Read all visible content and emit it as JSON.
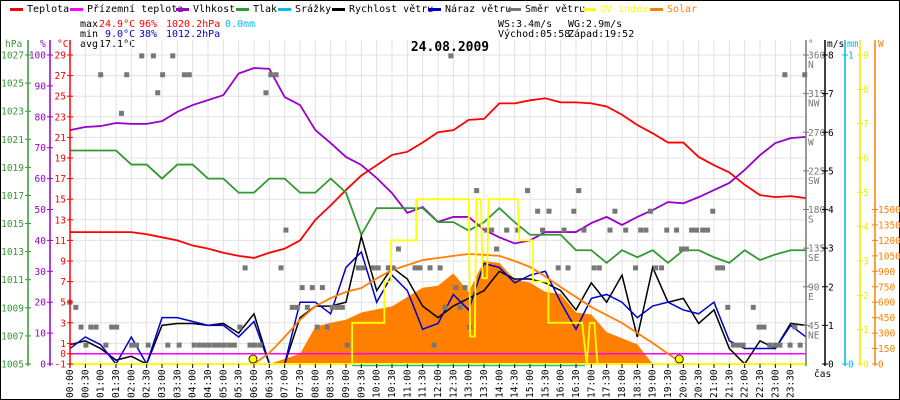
{
  "legend": [
    {
      "label": "Teplota",
      "color": "#ff0000"
    },
    {
      "label": "Přízemní teplota",
      "color": "#ff00ff"
    },
    {
      "label": "Vlhkost",
      "color": "#9900cc"
    },
    {
      "label": "Tlak",
      "color": "#339933"
    },
    {
      "label": "Srážky",
      "color": "#00bbee"
    },
    {
      "label": "Rychlost větru",
      "color": "#000000"
    },
    {
      "label": "Náraz větru",
      "color": "#0000cc"
    },
    {
      "label": "Směr větru",
      "color": "#777777"
    },
    {
      "label": "UV index",
      "color": "#ffff00"
    },
    {
      "label": "Solar",
      "color": "#ff8000"
    }
  ],
  "stats": {
    "max_label": "max",
    "max_temp": "24.9°C",
    "max_hum": "96%",
    "max_press": "1020.2hPa",
    "max_rain": "0.0mm",
    "min_label": "min",
    "min_temp": "9.0°C",
    "min_hum": "38%",
    "min_press": "1012.2hPa",
    "avg_label": "avg",
    "avg_temp": "17.1°C",
    "ws": "WS:3.4m/s",
    "wg": "WG:2.9m/s",
    "sunrise": "Východ:05:58",
    "sunset": "Západ:19:52"
  },
  "chart_data": {
    "type": "line",
    "title": "24.08.2009",
    "xlabel": "čas",
    "x_range_h": [
      0,
      24
    ],
    "x_tick_labels": [
      "00:00",
      "00:30",
      "01:00",
      "01:30",
      "02:00",
      "02:30",
      "03:00",
      "03:30",
      "04:00",
      "04:30",
      "05:00",
      "05:30",
      "06:00",
      "06:30",
      "07:00",
      "07:30",
      "08:00",
      "08:30",
      "09:00",
      "09:30",
      "10:00",
      "10:30",
      "11:00",
      "11:30",
      "12:00",
      "12:30",
      "13:00",
      "13:30",
      "14:00",
      "14:30",
      "15:00",
      "15:30",
      "16:00",
      "16:30",
      "17:00",
      "17:30",
      "18:00",
      "18:30",
      "19:00",
      "19:30",
      "20:00",
      "20:30",
      "21:00",
      "21:30",
      "22:00",
      "22:30",
      "23:00",
      "23:30"
    ],
    "axes": {
      "hpa": {
        "unit": "hPa",
        "range": [
          1005,
          1027
        ],
        "ticks": [
          "1027",
          "1025",
          "1023",
          "1021",
          "1019",
          "1017",
          "1015",
          "1013",
          "1011",
          "1009",
          "1007",
          "1005"
        ],
        "color": "#339933"
      },
      "pct": {
        "unit": "%",
        "range": [
          0,
          100
        ],
        "ticks": [
          "100",
          "90",
          "80",
          "70",
          "60",
          "50",
          "40",
          "30",
          "20",
          "10",
          "0"
        ],
        "color": "#9900cc"
      },
      "temp": {
        "unit": "°C",
        "range": [
          -1,
          29
        ],
        "ticks": [
          "29",
          "27",
          "25",
          "23",
          "21",
          "19",
          "17",
          "15",
          "13",
          "11",
          "9",
          "7",
          "5",
          "3",
          "1",
          "0",
          "-1"
        ],
        "color": "#ff0000"
      },
      "deg": {
        "unit": "°",
        "range": [
          0,
          360
        ],
        "ticks": [
          {
            "v": "360",
            "dir": "N"
          },
          {
            "v": "315",
            "dir": "NW"
          },
          {
            "v": "270",
            "dir": "W"
          },
          {
            "v": "225",
            "dir": "SW"
          },
          {
            "v": "180",
            "dir": "S"
          },
          {
            "v": "135",
            "dir": "SE"
          },
          {
            "v": "90",
            "dir": "E"
          },
          {
            "v": "45",
            "dir": "NE"
          }
        ],
        "color": "#777777"
      },
      "ms": {
        "unit": "m/s",
        "range": [
          0,
          8
        ],
        "ticks": [
          "8",
          "7",
          "6",
          "5",
          "4",
          "3",
          "2",
          "1",
          "0"
        ],
        "color": "#000000"
      },
      "mm": {
        "unit": "mm",
        "range": [
          0,
          1
        ],
        "ticks": [
          "1",
          "0"
        ],
        "color": "#00bbee"
      },
      "uv": {
        "unit": "",
        "range": [
          0,
          9
        ],
        "ticks": [
          "9",
          "8",
          "7",
          "6",
          "5",
          "4",
          "3",
          "2",
          "1",
          "0"
        ],
        "color": "#eeee00"
      },
      "w": {
        "unit": "W",
        "range": [
          0,
          3000
        ],
        "ticks": [
          "1500",
          "1350",
          "1200",
          "1050",
          "900",
          "750",
          "600",
          "450",
          "300",
          "150",
          "0"
        ],
        "color": "#ff8000"
      }
    },
    "step_h": 0.5,
    "series": [
      {
        "name": "Teplota",
        "axis": "temp",
        "color": "#ff0000",
        "values": [
          11.8,
          11.8,
          11.8,
          11.8,
          11.8,
          11.6,
          11.3,
          11.0,
          10.5,
          10.2,
          9.8,
          9.5,
          9.3,
          9.8,
          10.2,
          11.0,
          13.0,
          14.4,
          15.9,
          17.3,
          18.3,
          19.3,
          19.6,
          20.5,
          21.5,
          21.7,
          22.7,
          22.8,
          24.3,
          24.3,
          24.6,
          24.8,
          24.4,
          24.4,
          24.3,
          24.0,
          23.2,
          22.2,
          21.4,
          20.5,
          20.5,
          19.1,
          18.3,
          17.6,
          16.4,
          15.4,
          15.2,
          15.3,
          15.1
        ]
      },
      {
        "name": "Přízemní teplota",
        "axis": "temp",
        "color": "#ff00ff",
        "constant": 0
      },
      {
        "name": "Vlhkost",
        "axis": "pct",
        "color": "#9900cc",
        "values": [
          75.7,
          76.7,
          77,
          78,
          77.7,
          77.7,
          78.6,
          81.6,
          83.8,
          85.4,
          87,
          94,
          95.8,
          95.5,
          86.4,
          83.8,
          75.7,
          71.5,
          67,
          64.4,
          60.2,
          55.3,
          48.9,
          50.8,
          46,
          47.6,
          47.6,
          43.4,
          41,
          39,
          40,
          42.7,
          42.7,
          42.7,
          45.6,
          47.6,
          45,
          47.6,
          49.8,
          52.4,
          52,
          54,
          56.3,
          58.6,
          62.8,
          67.6,
          71.5,
          73.1,
          73.5
        ]
      },
      {
        "name": "Tlak",
        "axis": "hpa",
        "color": "#339933",
        "values": [
          1020.2,
          1020.2,
          1020.2,
          1020.2,
          1019.2,
          1019.2,
          1018.2,
          1019.2,
          1019.2,
          1018.2,
          1018.2,
          1017.2,
          1017.2,
          1018.2,
          1018.2,
          1017.2,
          1017.2,
          1018.2,
          1017.2,
          1014.2,
          1016.1,
          1016.1,
          1016.1,
          1016.1,
          1015.1,
          1015.1,
          1014.5,
          1015.1,
          1016.1,
          1015.1,
          1014.2,
          1014.2,
          1014.2,
          1013.1,
          1013.1,
          1012.2,
          1013.1,
          1012.6,
          1013.1,
          1012.2,
          1013.1,
          1013.1,
          1012.6,
          1012.2,
          1013.1,
          1012.4,
          1012.8,
          1013.1,
          1013.1
        ]
      },
      {
        "name": "Rychlost větru",
        "axis": "ms",
        "color": "#000000",
        "values": [
          0.5,
          0.6,
          0.4,
          0.1,
          0.2,
          0,
          1.0,
          1.05,
          1.05,
          1.0,
          1.05,
          0.8,
          1.3,
          0,
          0,
          1.2,
          1.5,
          1.5,
          1.6,
          3.3,
          1.9,
          2.5,
          2.2,
          1.5,
          1.2,
          1.5,
          1.7,
          1.9,
          2.4,
          2.2,
          2.2,
          2.1,
          1.9,
          1.4,
          2.1,
          1.6,
          2.3,
          0.7,
          2.5,
          1.6,
          1.7,
          1.05,
          1.4,
          0.4,
          0,
          0.6,
          0.4,
          1.05,
          1.0
        ]
      },
      {
        "name": "Náraz větru",
        "axis": "ms",
        "color": "#0000cc",
        "values": [
          0.4,
          0.7,
          0.5,
          0,
          0.7,
          0,
          1.2,
          1.2,
          1.1,
          1.0,
          1.0,
          0.7,
          1.1,
          0,
          0,
          1.6,
          1.6,
          1.3,
          2.5,
          2.9,
          1.6,
          2.3,
          1.9,
          0.9,
          1.05,
          1.8,
          1.4,
          2.6,
          2.5,
          2.1,
          2.3,
          2.4,
          1.6,
          0.9,
          1.7,
          1.8,
          1.6,
          1.2,
          1.5,
          1.6,
          1.4,
          1.3,
          1.6,
          0.6,
          0.4,
          0.4,
          0.4,
          1.0,
          0.7
        ]
      },
      {
        "name": "Solar",
        "axis": "w",
        "color": "#ff8000",
        "fill": true,
        "values": [
          0,
          0,
          0,
          0,
          0,
          0,
          0,
          0,
          0,
          0,
          0,
          0,
          0,
          0,
          50,
          100,
          360,
          400,
          430,
          500,
          530,
          560,
          650,
          740,
          760,
          880,
          700,
          1000,
          980,
          820,
          790,
          700,
          680,
          500,
          480,
          310,
          250,
          190,
          0,
          0,
          0,
          0,
          0,
          0,
          0,
          0,
          0,
          0,
          0
        ]
      },
      {
        "name": "Solar max",
        "axis": "w",
        "color": "#ff8000",
        "values": [
          0,
          0,
          0,
          0,
          0,
          0,
          0,
          0,
          0,
          0,
          0,
          0,
          0,
          107,
          262,
          430,
          560,
          640,
          700,
          738,
          830,
          913,
          960,
          1010,
          1029,
          1050,
          1068,
          1060,
          1050,
          1000,
          942,
          850,
          748,
          650,
          553,
          475,
          398,
          300,
          204,
          100,
          0,
          0,
          0,
          0,
          0,
          0,
          0,
          0,
          0
        ]
      }
    ],
    "uv_steps": [
      [
        0,
        0
      ],
      [
        9.2,
        0
      ],
      [
        9.2,
        1.2
      ],
      [
        10.25,
        1.2
      ],
      [
        10.25,
        2.4
      ],
      [
        10.47,
        2.4
      ],
      [
        10.47,
        3.6
      ],
      [
        11.29,
        3.6
      ],
      [
        11.29,
        4.8
      ],
      [
        13.0,
        4.8
      ],
      [
        13.05,
        0.8
      ],
      [
        13.2,
        0.8
      ],
      [
        13.25,
        4.8
      ],
      [
        13.4,
        4.8
      ],
      [
        13.45,
        2.5
      ],
      [
        13.6,
        2.5
      ],
      [
        13.65,
        4.8
      ],
      [
        14.6,
        4.8
      ],
      [
        14.65,
        3.6
      ],
      [
        15.1,
        3.6
      ],
      [
        15.1,
        2.4
      ],
      [
        15.6,
        2.4
      ],
      [
        15.6,
        1.2
      ],
      [
        16.7,
        1.2
      ],
      [
        16.85,
        0
      ],
      [
        16.95,
        1.2
      ],
      [
        17.1,
        1.2
      ],
      [
        17.2,
        0
      ],
      [
        24,
        0
      ]
    ],
    "rain_mm": {
      "value": 0,
      "from_h": 9.2,
      "to_h": 16.8
    },
    "wind_direction_points": [
      [
        0.0,
        72
      ],
      [
        0.19,
        66
      ],
      [
        0.36,
        43
      ],
      [
        0.52,
        22
      ],
      [
        0.68,
        43
      ],
      [
        0.85,
        43
      ],
      [
        1.0,
        337
      ],
      [
        1.17,
        22
      ],
      [
        1.36,
        43
      ],
      [
        1.52,
        43
      ],
      [
        1.68,
        292
      ],
      [
        1.85,
        337
      ],
      [
        2.01,
        22
      ],
      [
        2.17,
        22
      ],
      [
        2.34,
        359
      ],
      [
        2.55,
        22
      ],
      [
        2.72,
        359
      ],
      [
        2.86,
        316
      ],
      [
        3.02,
        337
      ],
      [
        3.19,
        22
      ],
      [
        3.35,
        359
      ],
      [
        3.56,
        22
      ],
      [
        3.73,
        337
      ],
      [
        3.89,
        337
      ],
      [
        4.05,
        22
      ],
      [
        4.22,
        22
      ],
      [
        4.38,
        22
      ],
      [
        4.54,
        22
      ],
      [
        4.71,
        22
      ],
      [
        4.87,
        22
      ],
      [
        5.03,
        22
      ],
      [
        5.2,
        22
      ],
      [
        5.36,
        22
      ],
      [
        5.54,
        43
      ],
      [
        5.71,
        112
      ],
      [
        5.87,
        22
      ],
      [
        6.03,
        22
      ],
      [
        6.2,
        22
      ],
      [
        6.39,
        316
      ],
      [
        6.55,
        337
      ],
      [
        6.72,
        337
      ],
      [
        6.88,
        112
      ],
      [
        7.04,
        156
      ],
      [
        7.25,
        66
      ],
      [
        7.41,
        66
      ],
      [
        7.57,
        89
      ],
      [
        7.74,
        66
      ],
      [
        7.9,
        89
      ],
      [
        8.06,
        43
      ],
      [
        8.23,
        89
      ],
      [
        8.39,
        43
      ],
      [
        8.55,
        66
      ],
      [
        8.72,
        66
      ],
      [
        8.88,
        66
      ],
      [
        9.04,
        22
      ],
      [
        9.4,
        112
      ],
      [
        9.56,
        112
      ],
      [
        9.89,
        112
      ],
      [
        10.05,
        112
      ],
      [
        10.38,
        112
      ],
      [
        10.54,
        112
      ],
      [
        10.71,
        134
      ],
      [
        11.25,
        112
      ],
      [
        11.41,
        112
      ],
      [
        11.74,
        112
      ],
      [
        11.87,
        22
      ],
      [
        12.07,
        112
      ],
      [
        12.23,
        66
      ],
      [
        12.42,
        359
      ],
      [
        12.58,
        89
      ],
      [
        12.72,
        66
      ],
      [
        12.88,
        89
      ],
      [
        13.04,
        43
      ],
      [
        13.26,
        202
      ],
      [
        13.59,
        156
      ],
      [
        13.75,
        156
      ],
      [
        13.91,
        134
      ],
      [
        14.24,
        156
      ],
      [
        14.6,
        156
      ],
      [
        14.92,
        202
      ],
      [
        15.25,
        178
      ],
      [
        15.41,
        156
      ],
      [
        15.62,
        178
      ],
      [
        15.92,
        112
      ],
      [
        16.11,
        156
      ],
      [
        16.24,
        112
      ],
      [
        16.43,
        178
      ],
      [
        16.59,
        202
      ],
      [
        16.76,
        156
      ],
      [
        17.09,
        112
      ],
      [
        17.26,
        112
      ],
      [
        17.61,
        156
      ],
      [
        17.77,
        178
      ],
      [
        18.12,
        156
      ],
      [
        18.44,
        112
      ],
      [
        18.61,
        156
      ],
      [
        18.78,
        156
      ],
      [
        18.93,
        178
      ],
      [
        19.1,
        112
      ],
      [
        19.29,
        112
      ],
      [
        19.46,
        156
      ],
      [
        19.78,
        156
      ],
      [
        19.94,
        134
      ],
      [
        20.1,
        134
      ],
      [
        20.27,
        156
      ],
      [
        20.43,
        156
      ],
      [
        20.63,
        156
      ],
      [
        20.79,
        156
      ],
      [
        20.96,
        178
      ],
      [
        21.12,
        112
      ],
      [
        21.28,
        112
      ],
      [
        21.45,
        66
      ],
      [
        21.63,
        22
      ],
      [
        21.79,
        22
      ],
      [
        21.95,
        22
      ],
      [
        22.28,
        66
      ],
      [
        22.47,
        43
      ],
      [
        22.63,
        43
      ],
      [
        22.82,
        22
      ],
      [
        22.99,
        22
      ],
      [
        23.15,
        22
      ],
      [
        23.31,
        337
      ],
      [
        23.48,
        22
      ],
      [
        23.64,
        43
      ],
      [
        23.81,
        22
      ],
      [
        23.96,
        337
      ]
    ],
    "sun_markers_h": [
      5.967,
      19.867
    ],
    "grid": true,
    "legend_placement": "top"
  }
}
